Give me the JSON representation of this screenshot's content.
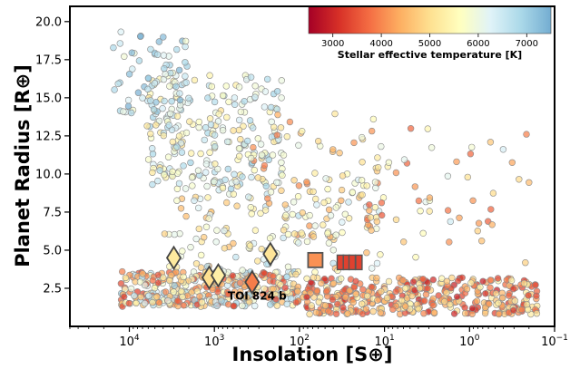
{
  "chart_data": {
    "type": "scatter",
    "xlabel": "Insolation [S⊕]",
    "ylabel": "Planet Radius [R⊕]",
    "x_scale": "log",
    "x_reversed": true,
    "xlim": [
      50000,
      0.1
    ],
    "ylim": [
      0,
      21
    ],
    "x_ticks": [
      {
        "value": 10000,
        "base": "10",
        "exp": "4"
      },
      {
        "value": 1000,
        "base": "10",
        "exp": "3"
      },
      {
        "value": 100,
        "base": "10",
        "exp": "2"
      },
      {
        "value": 10,
        "base": "10",
        "exp": "1"
      },
      {
        "value": 1,
        "base": "10",
        "exp": "0"
      },
      {
        "value": 0.1,
        "base": "10",
        "exp": "−1"
      }
    ],
    "y_ticks": [
      "2.5",
      "5.0",
      "7.5",
      "10.0",
      "12.5",
      "15.0",
      "17.5",
      "20.0"
    ],
    "colorbar": {
      "label": "Stellar effective temperature [K]",
      "range": [
        2500,
        7500
      ],
      "ticks": [
        "3000",
        "4000",
        "5000",
        "6000",
        "7000"
      ],
      "colormap": [
        "#a50026",
        "#d73027",
        "#f46d43",
        "#fdae61",
        "#fee090",
        "#ffffbf",
        "#e0f3f8",
        "#abd9e9",
        "#74add1"
      ]
    },
    "highlighted": {
      "diamonds": [
        {
          "x": 3000,
          "y": 4.5,
          "teff": 5200
        },
        {
          "x": 1150,
          "y": 3.2,
          "teff": 5000
        },
        {
          "x": 900,
          "y": 3.35,
          "teff": 5300
        },
        {
          "x": 220,
          "y": 4.75,
          "teff": 5100
        },
        {
          "x": 360,
          "y": 2.9,
          "teff": 3900
        }
      ],
      "square": {
        "x": 65,
        "y": 4.35,
        "teff": 4100
      },
      "bars": [
        {
          "x": 33,
          "y": 4.2,
          "teff": 3300
        },
        {
          "x": 28,
          "y": 4.2,
          "teff": 3300
        },
        {
          "x": 24,
          "y": 4.2,
          "teff": 3300
        },
        {
          "x": 20,
          "y": 4.2,
          "teff": 3300
        }
      ]
    },
    "annotation": {
      "text": "TOI 824 b",
      "x": 350,
      "y": 2.0
    },
    "point_clusters": [
      {
        "xlog": [
          2.0,
          4.1
        ],
        "y": [
          1.3,
          3.6
        ],
        "teff": [
          3200,
          7000
        ],
        "count": 360
      },
      {
        "xlog": [
          -0.8,
          2.0
        ],
        "y": [
          0.8,
          3.2
        ],
        "teff": [
          2900,
          5500
        ],
        "count": 380
      },
      {
        "xlog": [
          1.5,
          3.6
        ],
        "y": [
          3.0,
          9.0
        ],
        "teff": [
          4500,
          6800
        ],
        "count": 110
      },
      {
        "xlog": [
          2.2,
          3.8
        ],
        "y": [
          9.0,
          16.5
        ],
        "teff": [
          5000,
          7000
        ],
        "count": 240
      },
      {
        "xlog": [
          3.3,
          4.2
        ],
        "y": [
          14.0,
          19.5
        ],
        "teff": [
          5800,
          7500
        ],
        "count": 70
      },
      {
        "xlog": [
          1.0,
          2.6
        ],
        "y": [
          5.0,
          14.0
        ],
        "teff": [
          3800,
          6500
        ],
        "count": 120
      },
      {
        "xlog": [
          -0.7,
          1.3
        ],
        "y": [
          3.5,
          13.0
        ],
        "teff": [
          3500,
          6500
        ],
        "count": 55
      }
    ]
  }
}
